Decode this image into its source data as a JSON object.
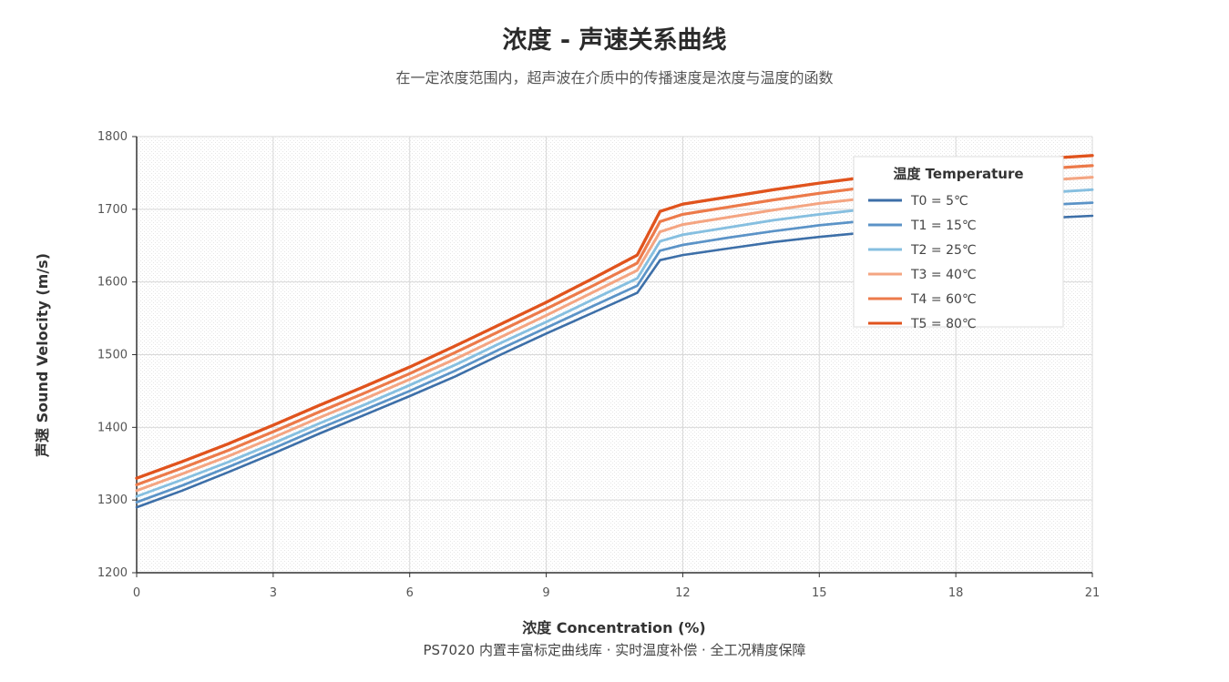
{
  "header": {
    "title": "浓度 - 声速关系曲线",
    "subtitle": "在一定浓度范围内，超声波在介质中的传播速度是浓度与温度的函数"
  },
  "footer": {
    "text": "PS7020 内置丰富标定曲线库 · 实时温度补偿 · 全工况精度保障"
  },
  "chart_data": {
    "type": "line",
    "title": "浓度 - 声速关系曲线",
    "subtitle": "在一定浓度范围内，超声波在介质中的传播速度是浓度与温度的函数",
    "xlabel": "浓度 Concentration (%)",
    "ylabel": "声速 Sound Velocity (m/s)",
    "xlim": [
      0,
      21
    ],
    "ylim": [
      1200,
      1800
    ],
    "xticks": [
      0,
      3,
      6,
      9,
      12,
      15,
      18,
      21
    ],
    "yticks": [
      1200,
      1300,
      1400,
      1500,
      1600,
      1700,
      1800
    ],
    "grid": true,
    "legend": {
      "title": "温度 Temperature",
      "placement": "top-right"
    },
    "x": [
      0,
      1,
      2,
      3,
      4,
      5,
      6,
      7,
      8,
      9,
      10,
      11,
      11.5,
      12,
      13,
      14,
      15,
      16,
      17,
      18,
      19,
      20,
      21
    ],
    "series": [
      {
        "name": "T0 = 5℃",
        "color": "#3d6fa8",
        "values": [
          1290,
          1313,
          1338,
          1364,
          1391,
          1417,
          1443,
          1470,
          1500,
          1529,
          1557,
          1585,
          1630,
          1637,
          1646,
          1655,
          1662,
          1668,
          1673,
          1678,
          1682,
          1688,
          1691
        ]
      },
      {
        "name": "T1 = 15℃",
        "color": "#5b93c7",
        "values": [
          1297,
          1320,
          1345,
          1371,
          1398,
          1424,
          1450,
          1478,
          1508,
          1537,
          1566,
          1595,
          1643,
          1651,
          1661,
          1670,
          1678,
          1684,
          1690,
          1695,
          1700,
          1706,
          1709
        ]
      },
      {
        "name": "T2 = 25℃",
        "color": "#86bfe0",
        "values": [
          1305,
          1328,
          1352,
          1378,
          1405,
          1431,
          1458,
          1486,
          1516,
          1545,
          1575,
          1605,
          1656,
          1665,
          1675,
          1685,
          1693,
          1700,
          1706,
          1712,
          1717,
          1723,
          1727
        ]
      },
      {
        "name": "T3 = 40℃",
        "color": "#f4a582",
        "values": [
          1313,
          1336,
          1360,
          1386,
          1413,
          1439,
          1466,
          1494,
          1524,
          1554,
          1585,
          1616,
          1669,
          1679,
          1689,
          1699,
          1708,
          1715,
          1722,
          1728,
          1734,
          1740,
          1744
        ]
      },
      {
        "name": "T4 = 60℃",
        "color": "#ec7a4a",
        "values": [
          1321,
          1344,
          1368,
          1394,
          1421,
          1447,
          1474,
          1503,
          1533,
          1563,
          1594,
          1626,
          1683,
          1693,
          1703,
          1713,
          1722,
          1730,
          1737,
          1744,
          1750,
          1756,
          1760
        ]
      },
      {
        "name": "T5 = 80℃",
        "color": "#e0531d",
        "values": [
          1330,
          1353,
          1377,
          1403,
          1430,
          1456,
          1483,
          1512,
          1542,
          1572,
          1604,
          1637,
          1697,
          1707,
          1717,
          1727,
          1736,
          1744,
          1751,
          1758,
          1764,
          1770,
          1774
        ]
      }
    ]
  }
}
